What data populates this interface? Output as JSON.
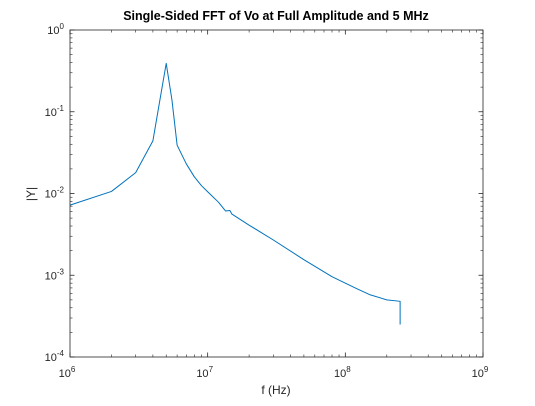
{
  "chart_data": {
    "type": "line",
    "title": "Single-Sided FFT of Vo at Full Amplitude and 5 MHz",
    "xlabel": "f (Hz)",
    "ylabel": "|Y|",
    "xscale": "log",
    "yscale": "log",
    "xlim": [
      1000000,
      1000000000
    ],
    "ylim": [
      0.0001,
      1
    ],
    "grid": false,
    "legend": "none",
    "x_ticks": [
      {
        "value": 1000000,
        "base": "10",
        "exp": "6"
      },
      {
        "value": 10000000,
        "base": "10",
        "exp": "7"
      },
      {
        "value": 100000000,
        "base": "10",
        "exp": "8"
      },
      {
        "value": 1000000000,
        "base": "10",
        "exp": "9"
      }
    ],
    "y_ticks": [
      {
        "value": 0.0001,
        "base": "10",
        "exp": "-4"
      },
      {
        "value": 0.001,
        "base": "10",
        "exp": "-3"
      },
      {
        "value": 0.01,
        "base": "10",
        "exp": "-2"
      },
      {
        "value": 0.1,
        "base": "10",
        "exp": "-1"
      },
      {
        "value": 1,
        "base": "10",
        "exp": "0"
      }
    ],
    "series": [
      {
        "color": "#0072bd",
        "x": [
          1000000,
          2000000,
          3000000,
          4000000,
          4500000,
          5000000,
          5500000,
          6000000,
          7000000,
          8000000,
          9000000,
          10000000,
          12000000,
          13500000,
          14500000,
          15000000,
          20000000,
          30000000,
          50000000,
          80000000,
          120000000,
          150000000,
          200000000,
          250000000,
          250000000
        ],
        "y": [
          0.0072,
          0.0106,
          0.018,
          0.044,
          0.14,
          0.39,
          0.14,
          0.039,
          0.023,
          0.016,
          0.0125,
          0.0105,
          0.0078,
          0.0061,
          0.0062,
          0.0056,
          0.0041,
          0.0027,
          0.00155,
          0.00096,
          0.00069,
          0.00058,
          0.0005,
          0.00048,
          0.00025
        ]
      }
    ]
  }
}
